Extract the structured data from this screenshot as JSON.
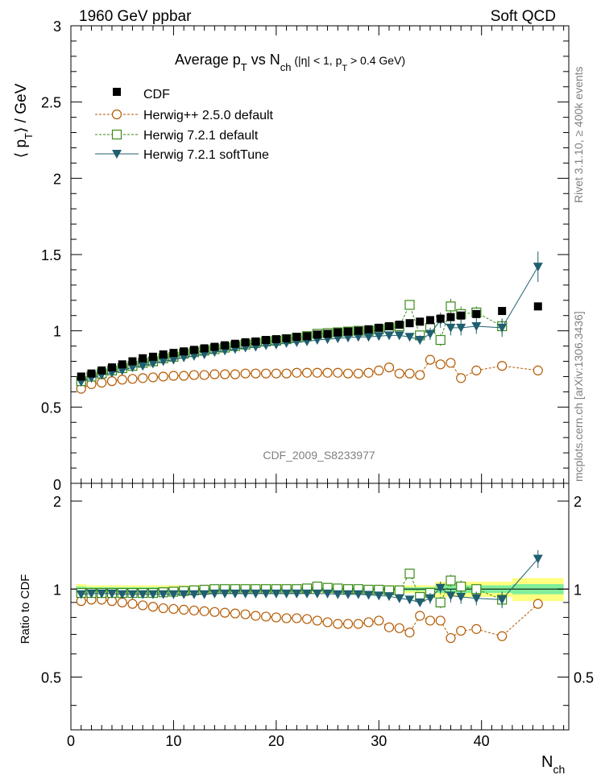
{
  "header": {
    "energy_label": "1960 GeV ppbar",
    "process_label": "Soft QCD"
  },
  "side_labels": {
    "rivet": "Rivet 3.1.10, ≥ 400k events",
    "mcplots": "mcplots.cern.ch [arXiv:1306.3436]"
  },
  "watermark": "CDF_2009_S8233977",
  "colors": {
    "cdf": "#000000",
    "herwigpp": "#b35900",
    "h721": "#3a8a1a",
    "h721soft": "#1f5f6f",
    "band_yellow": "#ffff80",
    "band_green": "#80ee9a"
  },
  "chart_data": [
    {
      "type": "scatter",
      "title_main": "Average p",
      "title_sub1": "T",
      "title_vs": " vs N",
      "title_sub2": "ch",
      "title_cut": " (|η| < 1, p",
      "title_sub3": "T",
      "title_end": " > 0.4 GeV)",
      "ylabel_a": "⟨ p",
      "ylabel_sub": "T",
      "ylabel_b": "⟩ / GeV",
      "xlim": [
        0,
        48.5
      ],
      "ylim": [
        0,
        3
      ],
      "yticks": [
        0.5,
        1,
        1.5,
        2,
        2.5,
        3
      ],
      "ytick_labels": [
        "0.5",
        "1",
        "1.5",
        "2",
        "2.5",
        "3"
      ],
      "y_zero_label": "0",
      "legend": [
        "CDF",
        "Herwig++ 2.5.0 default",
        "Herwig 7.2.1 default",
        "Herwig 7.2.1 softTune"
      ],
      "legend_position": "top-left",
      "series": [
        {
          "name": "CDF",
          "key": "cdf",
          "x": [
            1,
            2,
            3,
            4,
            5,
            6,
            7,
            8,
            9,
            10,
            11,
            12,
            13,
            14,
            15,
            16,
            17,
            18,
            19,
            20,
            21,
            22,
            23,
            24,
            25,
            26,
            27,
            28,
            29,
            30,
            31,
            32,
            33,
            34,
            35,
            36,
            37,
            38,
            39.5,
            42,
            45.5
          ],
          "y": [
            0.7,
            0.72,
            0.74,
            0.76,
            0.78,
            0.8,
            0.82,
            0.83,
            0.845,
            0.855,
            0.865,
            0.875,
            0.885,
            0.895,
            0.905,
            0.915,
            0.925,
            0.93,
            0.94,
            0.945,
            0.95,
            0.96,
            0.965,
            0.975,
            0.98,
            0.99,
            0.995,
            1.0,
            1.01,
            1.02,
            1.03,
            1.04,
            1.05,
            1.06,
            1.07,
            1.08,
            1.09,
            1.1,
            1.11,
            1.13,
            1.16
          ]
        },
        {
          "name": "Herwig++ 2.5.0 default",
          "key": "herwigpp",
          "x": [
            1,
            2,
            3,
            4,
            5,
            6,
            7,
            8,
            9,
            10,
            11,
            12,
            13,
            14,
            15,
            16,
            17,
            18,
            19,
            20,
            21,
            22,
            23,
            24,
            25,
            26,
            27,
            28,
            29,
            30,
            31,
            32,
            33,
            34,
            35,
            36,
            37,
            38,
            39.5,
            42,
            45.5
          ],
          "y": [
            0.62,
            0.65,
            0.66,
            0.67,
            0.68,
            0.685,
            0.69,
            0.695,
            0.7,
            0.705,
            0.705,
            0.71,
            0.71,
            0.715,
            0.715,
            0.715,
            0.72,
            0.72,
            0.72,
            0.72,
            0.72,
            0.725,
            0.725,
            0.725,
            0.725,
            0.725,
            0.72,
            0.72,
            0.725,
            0.74,
            0.76,
            0.72,
            0.72,
            0.71,
            0.81,
            0.78,
            0.79,
            0.69,
            0.74,
            0.77,
            0.74
          ],
          "err": [
            0.01,
            0.01,
            0.01,
            0.01,
            0.01,
            0.01,
            0.01,
            0.01,
            0.01,
            0.01,
            0.01,
            0.01,
            0.01,
            0.01,
            0.01,
            0.01,
            0.01,
            0.01,
            0.01,
            0.01,
            0.01,
            0.01,
            0.01,
            0.01,
            0.01,
            0.01,
            0.01,
            0.01,
            0.01,
            0.01,
            0.01,
            0.01,
            0.01,
            0.015,
            0.015,
            0.02,
            0.02,
            0.02,
            0.015,
            0.02,
            0.02
          ]
        },
        {
          "name": "Herwig 7.2.1 default",
          "key": "h721",
          "x": [
            1,
            2,
            3,
            4,
            5,
            6,
            7,
            8,
            9,
            10,
            11,
            12,
            13,
            14,
            15,
            16,
            17,
            18,
            19,
            20,
            21,
            22,
            23,
            24,
            25,
            26,
            27,
            28,
            29,
            30,
            31,
            32,
            33,
            34,
            35,
            36,
            37,
            38,
            39.5,
            42
          ],
          "y": [
            0.67,
            0.7,
            0.72,
            0.74,
            0.755,
            0.77,
            0.79,
            0.8,
            0.82,
            0.83,
            0.85,
            0.86,
            0.87,
            0.88,
            0.89,
            0.9,
            0.91,
            0.92,
            0.93,
            0.935,
            0.945,
            0.955,
            0.965,
            0.98,
            0.985,
            0.99,
            0.995,
            1.0,
            1.0,
            1.01,
            1.02,
            1.03,
            1.17,
            0.97,
            1.02,
            0.94,
            1.16,
            1.11,
            1.12,
            1.03
          ],
          "err": [
            0.01,
            0.01,
            0.01,
            0.01,
            0.01,
            0.01,
            0.01,
            0.01,
            0.01,
            0.01,
            0.01,
            0.01,
            0.01,
            0.01,
            0.01,
            0.01,
            0.01,
            0.01,
            0.01,
            0.01,
            0.01,
            0.01,
            0.01,
            0.01,
            0.01,
            0.01,
            0.01,
            0.01,
            0.01,
            0.01,
            0.01,
            0.015,
            0.03,
            0.03,
            0.03,
            0.04,
            0.05,
            0.05,
            0.04,
            0.05
          ]
        },
        {
          "name": "Herwig 7.2.1 softTune",
          "key": "h721soft",
          "x": [
            1,
            2,
            3,
            4,
            5,
            6,
            7,
            8,
            9,
            10,
            11,
            12,
            13,
            14,
            15,
            16,
            17,
            18,
            19,
            20,
            21,
            22,
            23,
            24,
            25,
            26,
            27,
            28,
            29,
            30,
            31,
            32,
            33,
            34,
            35,
            36,
            37,
            38,
            39.5,
            42,
            45.5
          ],
          "y": [
            0.665,
            0.69,
            0.71,
            0.725,
            0.74,
            0.76,
            0.77,
            0.785,
            0.8,
            0.81,
            0.825,
            0.835,
            0.845,
            0.86,
            0.87,
            0.88,
            0.89,
            0.895,
            0.905,
            0.91,
            0.92,
            0.925,
            0.93,
            0.94,
            0.945,
            0.95,
            0.955,
            0.96,
            0.96,
            0.965,
            0.97,
            0.97,
            0.96,
            0.94,
            0.98,
            1.07,
            1.02,
            1.02,
            1.03,
            1.02,
            1.42
          ],
          "err": [
            0.01,
            0.01,
            0.01,
            0.01,
            0.01,
            0.01,
            0.01,
            0.01,
            0.01,
            0.01,
            0.01,
            0.01,
            0.01,
            0.01,
            0.01,
            0.01,
            0.01,
            0.01,
            0.01,
            0.01,
            0.01,
            0.01,
            0.01,
            0.01,
            0.01,
            0.01,
            0.01,
            0.01,
            0.01,
            0.01,
            0.01,
            0.015,
            0.02,
            0.03,
            0.04,
            0.05,
            0.05,
            0.05,
            0.05,
            0.06,
            0.1
          ]
        }
      ]
    },
    {
      "type": "scatter",
      "ylabel": "Ratio to CDF",
      "xlabel": "N",
      "xlabel_sub": "ch",
      "xlim": [
        0,
        48.5
      ],
      "ylim": [
        0.33,
        2.3
      ],
      "yticks": [
        0.5,
        1,
        2
      ],
      "ytick_labels": [
        "0.5",
        "1",
        "2"
      ],
      "xticks": [
        0,
        10,
        20,
        30,
        40
      ],
      "xtick_labels": [
        "0",
        "10",
        "20",
        "30",
        "40"
      ],
      "bands": [
        {
          "x0": 0.5,
          "x1": 1.5,
          "yellow": [
            0.96,
            1.04
          ],
          "green": [
            0.98,
            1.02
          ]
        },
        {
          "x0": 35.5,
          "x1": 43,
          "yellow": [
            0.94,
            1.06
          ],
          "green": [
            0.97,
            1.03
          ]
        },
        {
          "x0": 43,
          "x1": 48,
          "yellow": [
            0.91,
            1.09
          ],
          "green": [
            0.96,
            1.04
          ]
        }
      ],
      "series": [
        {
          "name": "Herwig++ 2.5.0 default",
          "key": "herwigpp",
          "x": [
            1,
            2,
            3,
            4,
            5,
            6,
            7,
            8,
            9,
            10,
            11,
            12,
            13,
            14,
            15,
            16,
            17,
            18,
            19,
            20,
            21,
            22,
            23,
            24,
            25,
            26,
            27,
            28,
            29,
            30,
            31,
            32,
            33,
            34,
            35,
            36,
            37,
            38,
            39.5,
            42,
            45.5
          ],
          "y": [
            0.91,
            0.92,
            0.92,
            0.91,
            0.9,
            0.89,
            0.88,
            0.87,
            0.86,
            0.855,
            0.85,
            0.845,
            0.84,
            0.835,
            0.83,
            0.825,
            0.82,
            0.81,
            0.805,
            0.8,
            0.795,
            0.795,
            0.79,
            0.78,
            0.77,
            0.76,
            0.76,
            0.76,
            0.77,
            0.78,
            0.74,
            0.735,
            0.71,
            0.81,
            0.78,
            0.78,
            0.68,
            0.72,
            0.73,
            0.69,
            0.89
          ],
          "err": [
            0.01,
            0.01,
            0.01,
            0.01,
            0.01,
            0.01,
            0.01,
            0.01,
            0.01,
            0.01,
            0.01,
            0.01,
            0.01,
            0.01,
            0.01,
            0.01,
            0.01,
            0.01,
            0.01,
            0.01,
            0.01,
            0.01,
            0.01,
            0.01,
            0.01,
            0.01,
            0.01,
            0.01,
            0.01,
            0.01,
            0.01,
            0.01,
            0.015,
            0.015,
            0.02,
            0.02,
            0.02,
            0.02,
            0.02,
            0.02,
            0.03
          ]
        },
        {
          "name": "Herwig 7.2.1 default",
          "key": "h721",
          "x": [
            1,
            2,
            3,
            4,
            5,
            6,
            7,
            8,
            9,
            10,
            11,
            12,
            13,
            14,
            15,
            16,
            17,
            18,
            19,
            20,
            21,
            22,
            23,
            24,
            25,
            26,
            27,
            28,
            29,
            30,
            31,
            32,
            33,
            34,
            35,
            36,
            37,
            38,
            39.5,
            42
          ],
          "y": [
            0.97,
            0.97,
            0.97,
            0.97,
            0.97,
            0.97,
            0.97,
            0.97,
            0.975,
            0.98,
            0.985,
            0.99,
            0.995,
            1.0,
            1.0,
            1.0,
            1.0,
            1.0,
            1.0,
            1.0,
            1.0,
            1.0,
            1.005,
            1.02,
            1.01,
            1.005,
            1.0,
            1.0,
            0.995,
            0.995,
            0.99,
            0.99,
            1.13,
            0.94,
            0.97,
            0.9,
            1.07,
            1.02,
            1.0,
            0.92
          ],
          "err": [
            0.01,
            0.01,
            0.01,
            0.01,
            0.01,
            0.01,
            0.01,
            0.01,
            0.01,
            0.01,
            0.01,
            0.01,
            0.01,
            0.01,
            0.01,
            0.01,
            0.01,
            0.01,
            0.01,
            0.01,
            0.01,
            0.01,
            0.01,
            0.01,
            0.01,
            0.01,
            0.01,
            0.01,
            0.01,
            0.01,
            0.01,
            0.015,
            0.03,
            0.03,
            0.03,
            0.04,
            0.05,
            0.05,
            0.04,
            0.05
          ]
        },
        {
          "name": "Herwig 7.2.1 softTune",
          "key": "h721soft",
          "x": [
            1,
            2,
            3,
            4,
            5,
            6,
            7,
            8,
            9,
            10,
            11,
            12,
            13,
            14,
            15,
            16,
            17,
            18,
            19,
            20,
            21,
            22,
            23,
            24,
            25,
            26,
            27,
            28,
            29,
            30,
            31,
            32,
            33,
            34,
            35,
            36,
            37,
            38,
            39.5,
            42,
            45.5
          ],
          "y": [
            0.96,
            0.965,
            0.965,
            0.965,
            0.96,
            0.96,
            0.96,
            0.96,
            0.96,
            0.96,
            0.96,
            0.96,
            0.96,
            0.965,
            0.965,
            0.965,
            0.965,
            0.965,
            0.965,
            0.965,
            0.965,
            0.965,
            0.965,
            0.965,
            0.965,
            0.96,
            0.96,
            0.96,
            0.955,
            0.95,
            0.945,
            0.93,
            0.92,
            0.9,
            0.93,
            1.01,
            0.95,
            0.94,
            0.93,
            0.92,
            1.27
          ],
          "err": [
            0.01,
            0.01,
            0.01,
            0.01,
            0.01,
            0.01,
            0.01,
            0.01,
            0.01,
            0.01,
            0.01,
            0.01,
            0.01,
            0.01,
            0.01,
            0.01,
            0.01,
            0.01,
            0.01,
            0.01,
            0.01,
            0.01,
            0.01,
            0.01,
            0.01,
            0.01,
            0.01,
            0.01,
            0.01,
            0.01,
            0.01,
            0.015,
            0.02,
            0.03,
            0.04,
            0.05,
            0.05,
            0.05,
            0.05,
            0.06,
            0.09
          ]
        }
      ]
    }
  ]
}
